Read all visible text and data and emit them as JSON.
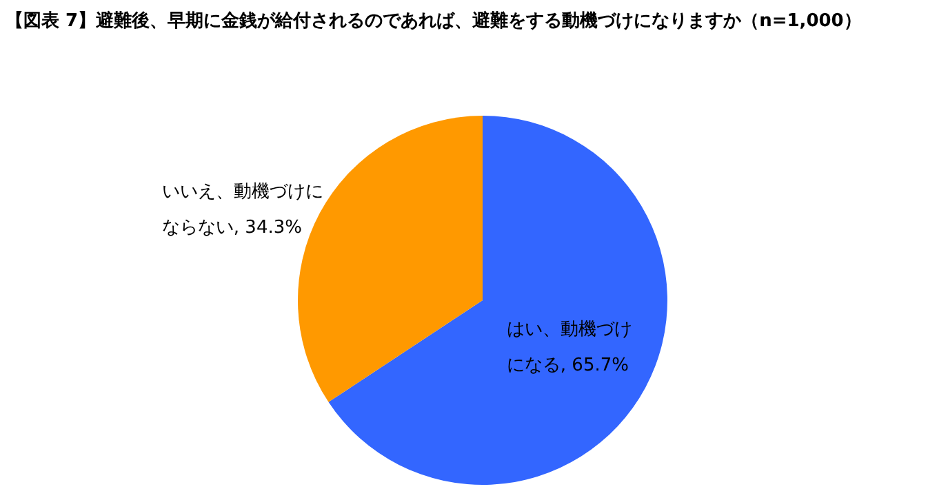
{
  "chart_data": {
    "type": "pie",
    "title": "【図表 7】避難後、早期に金銭が給付されるのであれば、避難をする動機づけになりますか（n=1,000）",
    "categories": [
      "はい、動機づけになる",
      "いいえ、動機づけにならない"
    ],
    "values": [
      65.7,
      34.3
    ],
    "colors": [
      "#3366ff",
      "#ff9900"
    ],
    "value_labels": [
      ", 65.7%",
      ", 34.3%"
    ]
  }
}
